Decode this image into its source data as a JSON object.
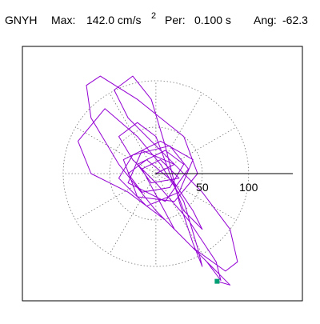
{
  "chart_data": {
    "type": "line",
    "title": {
      "station": "GNYH",
      "max_label": "Max:",
      "max_value": "142.0 cm/s",
      "max_exponent": "2",
      "period_label": "Per:",
      "period_value": "0.100 s",
      "angle_label": "Ang:",
      "angle_value": "-62.3"
    },
    "xlim": [
      -144,
      158
    ],
    "ylim": [
      -137,
      137
    ],
    "rticks": [
      50,
      100
    ],
    "ray_angles": [
      0,
      30,
      60,
      90,
      120,
      150,
      180,
      210,
      240,
      270,
      300,
      330
    ],
    "color": "#9400d3",
    "marker_color": "#009e73",
    "x": [
      0,
      20,
      -15,
      -30,
      10,
      35,
      15,
      -25,
      -40,
      -10,
      25,
      40,
      5,
      -35,
      -20,
      20,
      45,
      30,
      -20,
      -60,
      -75,
      -70,
      -40,
      0,
      40,
      75,
      88,
      80,
      50,
      10,
      -30,
      -45,
      -25,
      -5,
      10,
      25,
      40,
      50,
      45,
      30,
      5,
      -20,
      -55,
      -84,
      -70,
      -30,
      10,
      55,
      70,
      65,
      35,
      0,
      -25,
      -40,
      -20,
      0,
      15,
      30,
      50,
      40,
      20,
      -10,
      -30,
      -15,
      15,
      30,
      10,
      -20,
      -5,
      25,
      5,
      -15,
      20,
      60,
      80,
      66
    ],
    "values": [
      0,
      10,
      25,
      -10,
      -30,
      5,
      30,
      20,
      -5,
      -35,
      -20,
      15,
      35,
      15,
      -25,
      -30,
      0,
      40,
      80,
      105,
      95,
      60,
      10,
      -40,
      -80,
      -105,
      -95,
      -60,
      -20,
      20,
      60,
      90,
      105,
      80,
      30,
      -30,
      -75,
      -100,
      -80,
      -30,
      10,
      40,
      70,
      35,
      0,
      -20,
      -50,
      -95,
      -115,
      -95,
      -50,
      -10,
      15,
      40,
      55,
      40,
      0,
      -40,
      -60,
      -40,
      -10,
      15,
      0,
      -20,
      -15,
      10,
      25,
      10,
      -10,
      -5,
      15,
      5,
      -60,
      -100,
      -120,
      -116
    ]
  }
}
